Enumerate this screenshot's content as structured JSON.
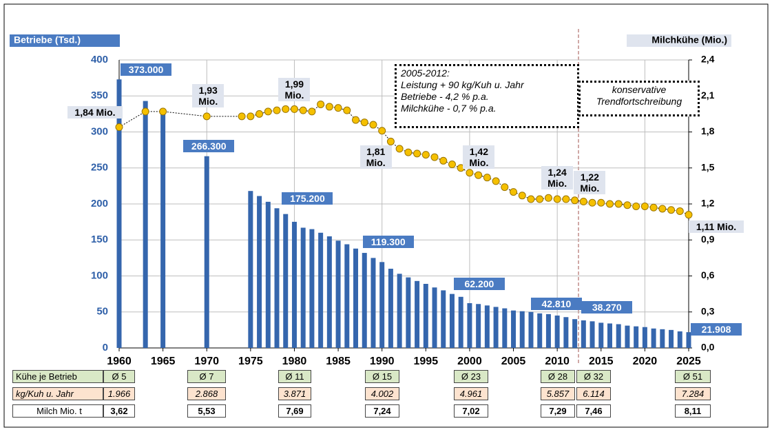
{
  "chart_data": {
    "type": "bar",
    "ylabel": "Betriebe (Tsd.)",
    "y2label": "Milchkühe (Mio.)",
    "xlim": [
      1960,
      2025
    ],
    "xticks": [
      1960,
      1965,
      1970,
      1975,
      1980,
      1985,
      1990,
      1995,
      2000,
      2005,
      2010,
      2015,
      2020,
      2025
    ],
    "ylim": [
      0,
      400
    ],
    "yticks": [
      0,
      50,
      100,
      150,
      200,
      250,
      300,
      350,
      400
    ],
    "y2lim": [
      0,
      2.4
    ],
    "y2ticks": [
      {
        "value": 0,
        "label": "0,0"
      },
      {
        "value": 0.3,
        "label": "0,3"
      },
      {
        "value": 0.6,
        "label": "0,6"
      },
      {
        "value": 0.9,
        "label": "0,9"
      },
      {
        "value": 1.2,
        "label": "1,2"
      },
      {
        "value": 1.5,
        "label": "1,5"
      },
      {
        "value": 1.8,
        "label": "1,8"
      },
      {
        "value": 2.1,
        "label": "2,1"
      },
      {
        "value": 2.4,
        "label": "2,4"
      }
    ],
    "grid": true,
    "series": [
      {
        "type": "bar",
        "color": "#3566ad",
        "x": [
          1960,
          1963,
          1965,
          1970,
          1975,
          1976,
          1977,
          1978,
          1979,
          1980,
          1981,
          1982,
          1983,
          1984,
          1985,
          1986,
          1987,
          1988,
          1989,
          1990,
          1991,
          1992,
          1993,
          1994,
          1995,
          1996,
          1997,
          1998,
          1999,
          2000,
          2001,
          2002,
          2003,
          2004,
          2005,
          2006,
          2007,
          2008,
          2009,
          2010,
          2011,
          2012,
          2013,
          2014,
          2015,
          2016,
          2017,
          2018,
          2019,
          2020,
          2021,
          2022,
          2023,
          2024,
          2025
        ],
        "values": [
          373,
          343,
          327,
          266.3,
          218,
          211,
          203,
          194,
          186,
          175.2,
          167,
          165,
          160,
          155,
          149,
          144,
          138,
          132,
          125,
          119.3,
          110,
          103,
          98,
          93,
          89,
          84,
          80,
          75,
          71,
          62.2,
          61,
          59,
          57,
          55,
          52,
          51,
          50,
          48,
          47,
          45,
          42.81,
          40,
          38.27,
          37,
          35,
          34,
          33,
          31,
          30,
          29,
          27,
          26,
          25,
          23,
          21.908
        ],
        "value_labels": [
          "373.000",
          null,
          null,
          "266.300",
          null,
          null,
          null,
          null,
          null,
          "175.200",
          null,
          null,
          null,
          null,
          null,
          null,
          null,
          null,
          null,
          "119.300",
          null,
          null,
          null,
          null,
          null,
          null,
          null,
          null,
          null,
          "62.200",
          null,
          null,
          null,
          null,
          null,
          null,
          null,
          null,
          null,
          null,
          "42.810",
          null,
          "38.270",
          null,
          null,
          null,
          null,
          null,
          null,
          null,
          null,
          null,
          null,
          null,
          "21.908"
        ]
      },
      {
        "type": "line",
        "axis": "y2",
        "color": "#f5c000",
        "x": [
          1960,
          1963,
          1965,
          1970,
          1974,
          1975,
          1976,
          1977,
          1978,
          1979,
          1980,
          1981,
          1982,
          1983,
          1984,
          1985,
          1986,
          1987,
          1988,
          1989,
          1990,
          1991,
          1992,
          1993,
          1994,
          1995,
          1996,
          1997,
          1998,
          1999,
          2000,
          2001,
          2002,
          2003,
          2004,
          2005,
          2006,
          2007,
          2008,
          2009,
          2010,
          2011,
          2012,
          2013,
          2014,
          2015,
          2016,
          2017,
          2018,
          2019,
          2020,
          2021,
          2022,
          2023,
          2024,
          2025
        ],
        "values": [
          1.84,
          1.97,
          1.97,
          1.93,
          1.93,
          1.93,
          1.95,
          1.97,
          1.98,
          1.99,
          1.99,
          1.98,
          1.97,
          2.03,
          2.01,
          2.0,
          1.98,
          1.9,
          1.88,
          1.86,
          1.81,
          1.72,
          1.66,
          1.63,
          1.62,
          1.61,
          1.59,
          1.56,
          1.53,
          1.5,
          1.46,
          1.44,
          1.42,
          1.39,
          1.34,
          1.3,
          1.27,
          1.24,
          1.24,
          1.25,
          1.24,
          1.24,
          1.23,
          1.22,
          1.21,
          1.21,
          1.2,
          1.2,
          1.19,
          1.18,
          1.18,
          1.17,
          1.16,
          1.15,
          1.14,
          1.11
        ],
        "value_labels": [
          "1,84 Mio.",
          null,
          null,
          "1,93 Mio.",
          null,
          null,
          null,
          null,
          null,
          null,
          "1,99 Mio.",
          null,
          null,
          null,
          null,
          null,
          null,
          null,
          null,
          null,
          "1,81 Mio.",
          null,
          null,
          null,
          null,
          null,
          null,
          null,
          null,
          null,
          null,
          null,
          "1,42 Mio.",
          null,
          null,
          null,
          null,
          null,
          null,
          null,
          "1,24 Mio.",
          null,
          null,
          "1,22 Mio.",
          null,
          null,
          null,
          null,
          null,
          null,
          null,
          null,
          null,
          null,
          null,
          "1,11 Mio."
        ]
      }
    ],
    "annotations": [
      {
        "lines": [
          "2005-2012:",
          "Leistung + 90 kg/Kuh u. Jahr",
          "Betriebe - 4,2 % p.a.",
          "Milchkühe - 0,7 % p.a."
        ]
      },
      {
        "lines": [
          "konservative",
          "Trendfortschreibung"
        ]
      }
    ]
  },
  "table": {
    "rows": [
      {
        "label": "Kühe je Betrieb",
        "cells": [
          "Ø 5",
          "Ø 7",
          "Ø 11",
          "Ø 15",
          "Ø 23",
          "Ø 28",
          "Ø 32",
          "Ø 51"
        ]
      },
      {
        "label": "kg/Kuh u. Jahr",
        "cells": [
          "1.966",
          "2.868",
          "3.871",
          "4.002",
          "4.961",
          "5.857",
          "6.114",
          "7.284"
        ]
      },
      {
        "label": "Milch Mio. t",
        "cells": [
          "3,62",
          "5,53",
          "7,69",
          "7,24",
          "7,02",
          "7,29",
          "7,46",
          "8,11"
        ]
      }
    ]
  }
}
